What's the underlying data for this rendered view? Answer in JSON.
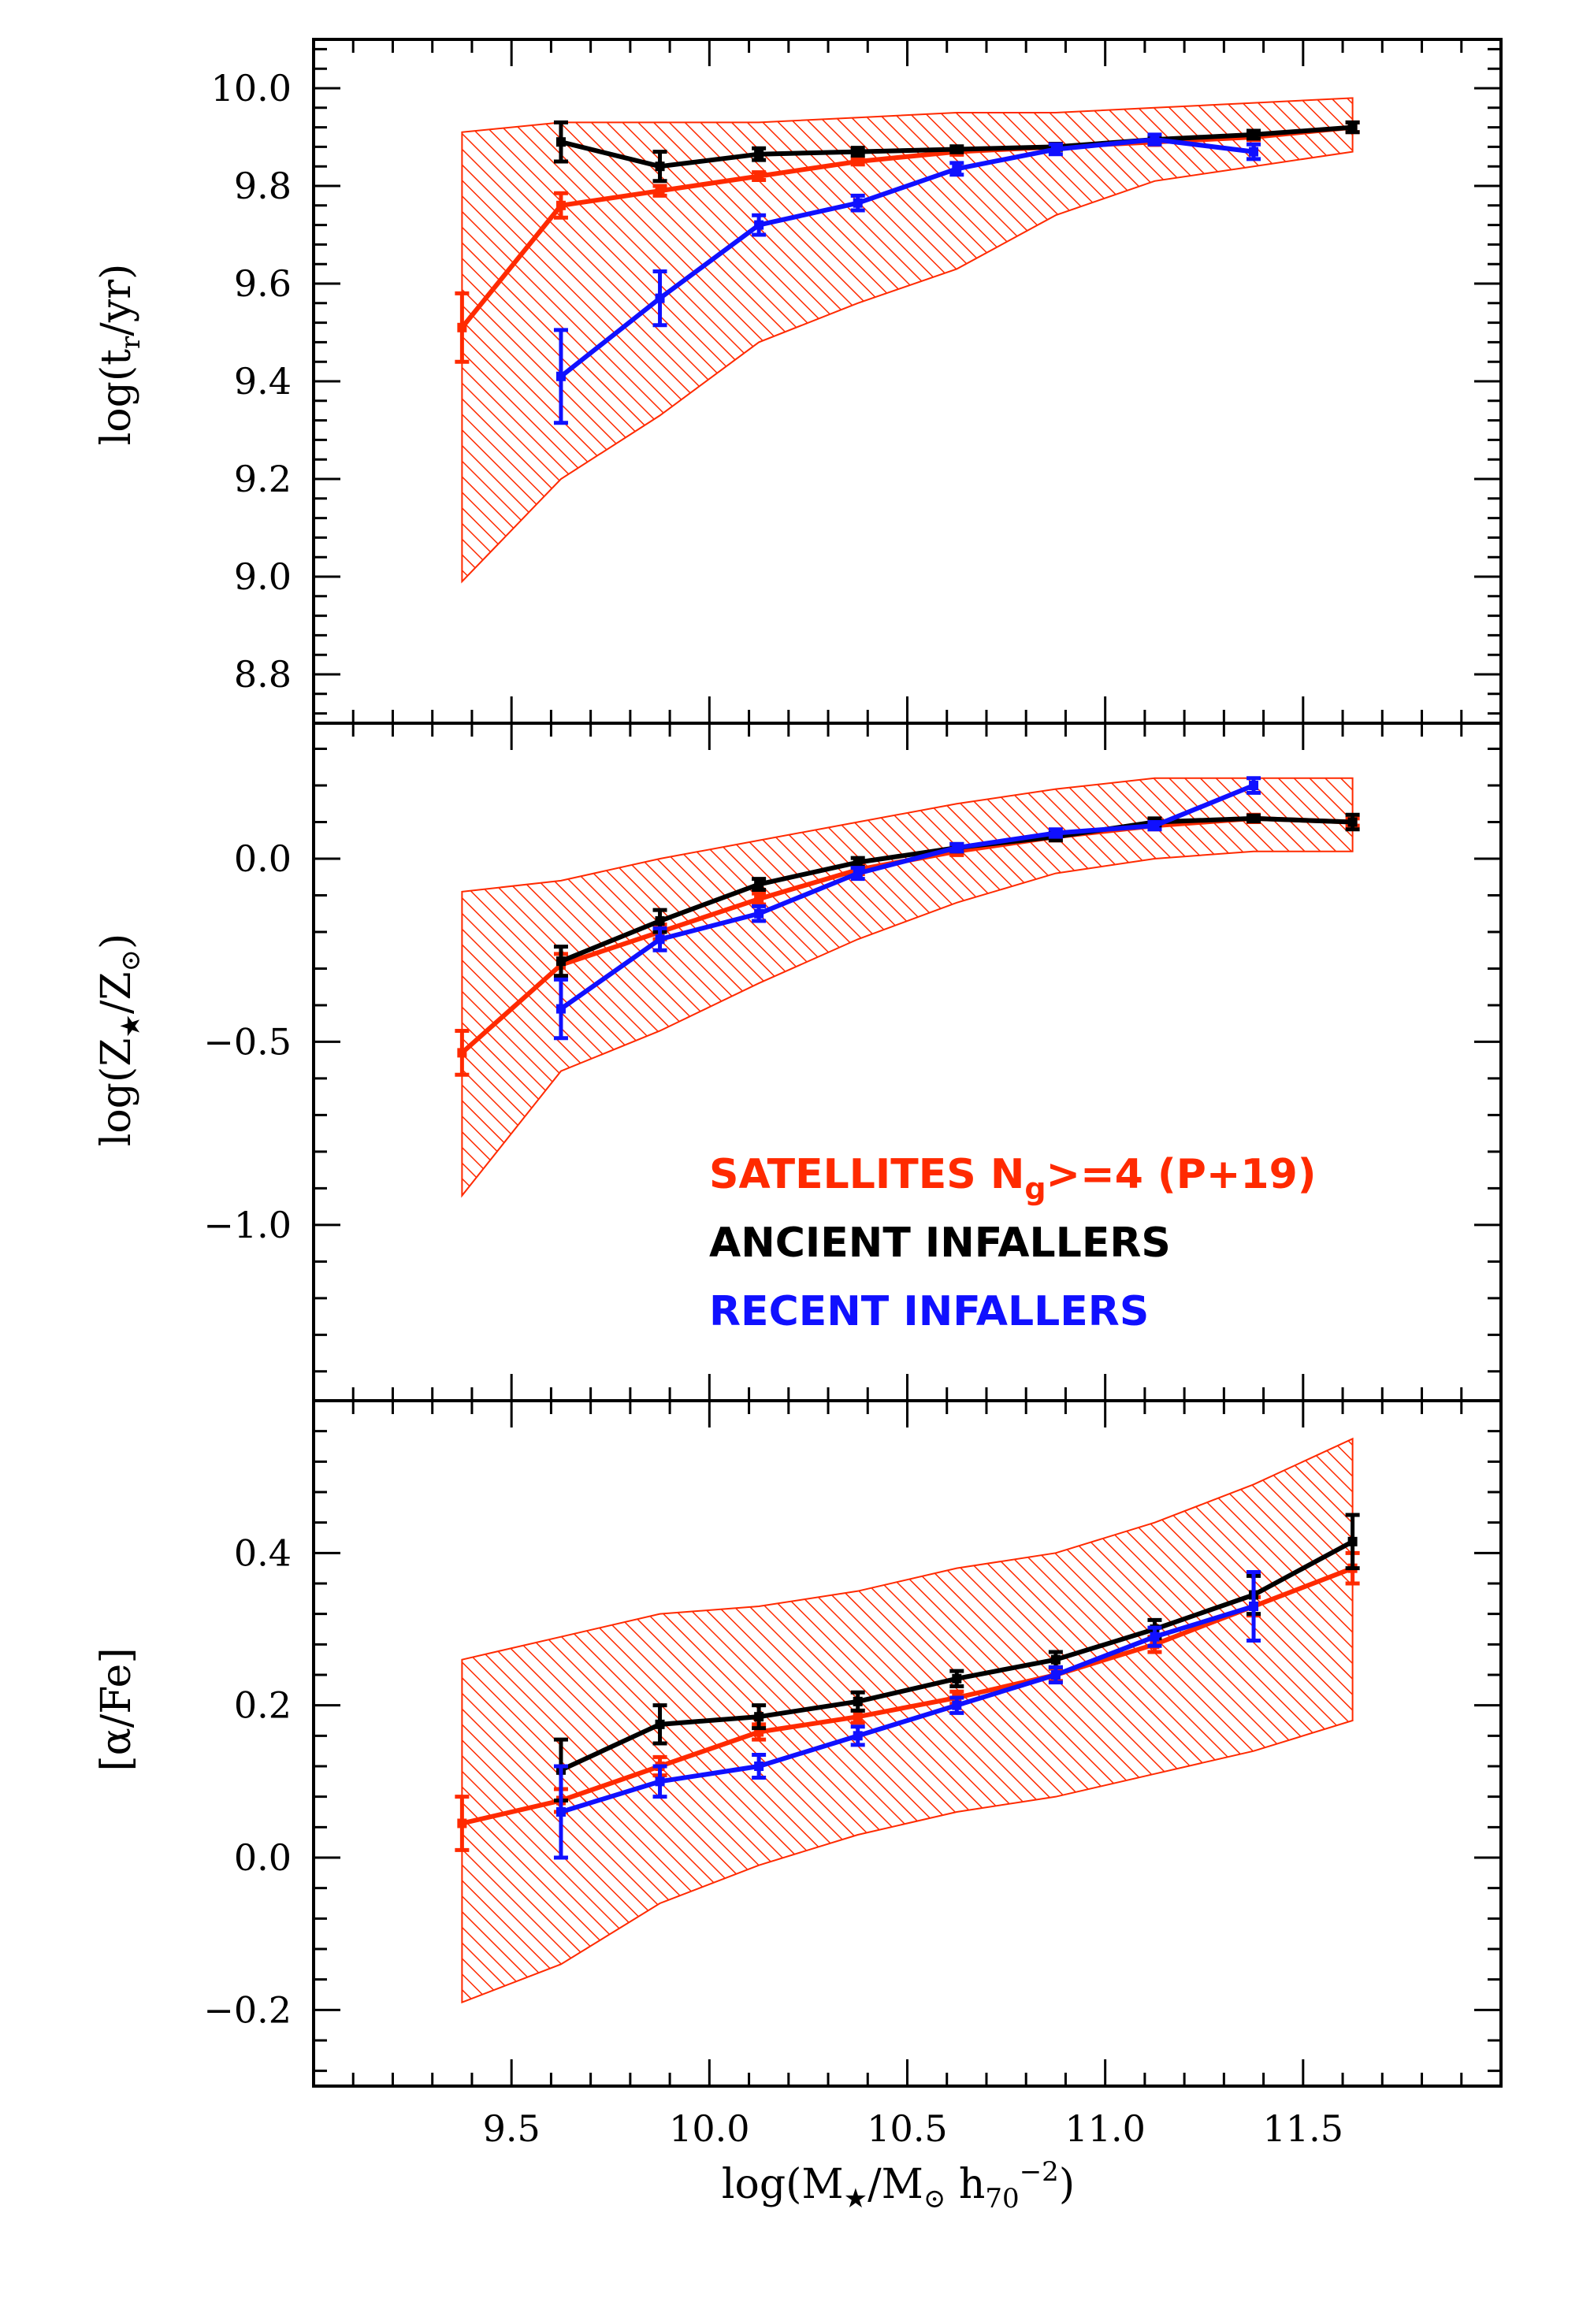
{
  "chart_data": [
    {
      "type": "line",
      "panel": "top",
      "ylabel": "log(t_r/yr)",
      "ylabel_parts": {
        "main": "log(t",
        "sub": "r",
        "tail": "/yr)"
      },
      "ylim": [
        8.7,
        10.1
      ],
      "yticks": [
        8.8,
        9.0,
        9.2,
        9.4,
        9.6,
        9.8,
        10.0
      ],
      "ytick_labels": [
        "8.8",
        "9.0",
        "9.2",
        "9.4",
        "9.6",
        "9.8",
        "10.0"
      ],
      "band": {
        "name": "SATELLITES N_g>=4 (P+19)",
        "color": "#ff2a00",
        "x": [
          9.375,
          9.625,
          9.875,
          10.125,
          10.375,
          10.625,
          10.875,
          11.125,
          11.375,
          11.625
        ],
        "lower": [
          8.99,
          9.2,
          9.33,
          9.48,
          9.56,
          9.63,
          9.74,
          9.81,
          9.84,
          9.87
        ],
        "upper": [
          9.91,
          9.93,
          9.93,
          9.93,
          9.94,
          9.95,
          9.95,
          9.96,
          9.97,
          9.98
        ]
      },
      "series": [
        {
          "name": "SATELLITES",
          "color": "#ff2a00",
          "x": [
            9.375,
            9.625,
            9.875,
            10.125,
            10.375,
            10.625,
            10.875,
            11.125,
            11.375,
            11.625
          ],
          "y": [
            9.51,
            9.76,
            9.79,
            9.82,
            9.85,
            9.87,
            9.88,
            9.89,
            9.9,
            9.92
          ],
          "err": [
            0.07,
            0.025,
            0.01,
            0.008,
            0.006,
            0.006,
            0.006,
            0.006,
            0.006,
            0.01
          ]
        },
        {
          "name": "ANCIENT INFALLERS",
          "color": "#000000",
          "x": [
            9.625,
            9.875,
            10.125,
            10.375,
            10.625,
            10.875,
            11.125,
            11.375,
            11.625
          ],
          "y": [
            9.89,
            9.84,
            9.865,
            9.87,
            9.875,
            9.88,
            9.895,
            9.905,
            9.92
          ],
          "err": [
            0.04,
            0.03,
            0.012,
            0.008,
            0.006,
            0.006,
            0.006,
            0.008,
            0.01
          ]
        },
        {
          "name": "RECENT INFALLERS",
          "color": "#1010ff",
          "x": [
            9.625,
            9.875,
            10.125,
            10.375,
            10.625,
            10.875,
            11.125,
            11.375
          ],
          "y": [
            9.41,
            9.57,
            9.72,
            9.765,
            9.835,
            9.875,
            9.895,
            9.87
          ],
          "err": [
            0.095,
            0.055,
            0.02,
            0.015,
            0.012,
            0.01,
            0.01,
            0.015
          ]
        }
      ]
    },
    {
      "type": "line",
      "panel": "middle",
      "ylabel": "log(Z_*/Z_sun)",
      "ylabel_parts": {
        "main": "log(Z",
        "sub": "★",
        "mid": "/Z",
        "sub2": "⊙",
        "tail": ")"
      },
      "ylim": [
        -1.48,
        0.37
      ],
      "yticks": [
        -1.0,
        -0.5,
        0.0
      ],
      "ytick_labels": [
        "−1.0",
        "−0.5",
        "0.0"
      ],
      "band": {
        "name": "SATELLITES N_g>=4 (P+19)",
        "color": "#ff2a00",
        "x": [
          9.375,
          9.625,
          9.875,
          10.125,
          10.375,
          10.625,
          10.875,
          11.125,
          11.375,
          11.625
        ],
        "lower": [
          -0.92,
          -0.58,
          -0.47,
          -0.34,
          -0.22,
          -0.12,
          -0.04,
          0.0,
          0.02,
          0.02
        ],
        "upper": [
          -0.09,
          -0.06,
          0.0,
          0.05,
          0.1,
          0.15,
          0.19,
          0.22,
          0.22,
          0.22
        ]
      },
      "series": [
        {
          "name": "SATELLITES",
          "color": "#ff2a00",
          "x": [
            9.375,
            9.625,
            9.875,
            10.125,
            10.375,
            10.625,
            10.875,
            11.125,
            11.375,
            11.625
          ],
          "y": [
            -0.53,
            -0.29,
            -0.2,
            -0.11,
            -0.03,
            0.02,
            0.06,
            0.09,
            0.11,
            0.1
          ],
          "err": [
            0.06,
            0.03,
            0.02,
            0.015,
            0.012,
            0.01,
            0.01,
            0.01,
            0.01,
            0.01
          ]
        },
        {
          "name": "ANCIENT INFALLERS",
          "color": "#000000",
          "x": [
            9.625,
            9.875,
            10.125,
            10.375,
            10.625,
            10.875,
            11.125,
            11.375,
            11.625
          ],
          "y": [
            -0.28,
            -0.17,
            -0.07,
            -0.01,
            0.03,
            0.06,
            0.1,
            0.11,
            0.1
          ],
          "err": [
            0.04,
            0.03,
            0.015,
            0.012,
            0.01,
            0.01,
            0.01,
            0.008,
            0.02
          ]
        },
        {
          "name": "RECENT INFALLERS",
          "color": "#1010ff",
          "x": [
            9.625,
            9.875,
            10.125,
            10.375,
            10.625,
            10.875,
            11.125,
            11.375
          ],
          "y": [
            -0.41,
            -0.22,
            -0.15,
            -0.04,
            0.03,
            0.07,
            0.09,
            0.2
          ],
          "err": [
            0.08,
            0.03,
            0.02,
            0.015,
            0.01,
            0.01,
            0.01,
            0.02
          ]
        }
      ],
      "legend": {
        "placement": "lower-right",
        "entries": [
          {
            "label_main": "SATELLITES N",
            "label_sub": "g",
            "label_tail": ">=4 (P+19)",
            "color": "#ff2a00"
          },
          {
            "label": "ANCIENT INFALLERS",
            "color": "#000000"
          },
          {
            "label": "RECENT INFALLERS",
            "color": "#1010ff"
          }
        ]
      }
    },
    {
      "type": "line",
      "panel": "bottom",
      "ylabel": "[α/Fe]",
      "ylim": [
        -0.3,
        0.6
      ],
      "yticks": [
        -0.2,
        0.0,
        0.2,
        0.4
      ],
      "ytick_labels": [
        "−0.2",
        "0.0",
        "0.2",
        "0.4"
      ],
      "xlabel": "log(M_*/M_sun h_70^-2)",
      "xlabel_parts": {
        "main": "log(M",
        "sub": "★",
        "mid": "/M",
        "sub2": "⊙",
        "mid2": " h",
        "sub3": "70",
        "sup": "−2",
        "tail": ")"
      },
      "xlim": [
        9.0,
        12.0
      ],
      "xticks": [
        9.5,
        10.0,
        10.5,
        11.0,
        11.5
      ],
      "xtick_labels": [
        "9.5",
        "10.0",
        "10.5",
        "11.0",
        "11.5"
      ],
      "band": {
        "name": "SATELLITES N_g>=4 (P+19)",
        "color": "#ff2a00",
        "x": [
          9.375,
          9.625,
          9.875,
          10.125,
          10.375,
          10.625,
          10.875,
          11.125,
          11.375,
          11.625
        ],
        "lower": [
          -0.19,
          -0.14,
          -0.06,
          -0.01,
          0.03,
          0.06,
          0.08,
          0.11,
          0.14,
          0.18
        ],
        "upper": [
          0.26,
          0.29,
          0.32,
          0.33,
          0.35,
          0.38,
          0.4,
          0.44,
          0.49,
          0.55
        ]
      },
      "series": [
        {
          "name": "SATELLITES",
          "color": "#ff2a00",
          "x": [
            9.375,
            9.625,
            9.875,
            10.125,
            10.375,
            10.625,
            10.875,
            11.125,
            11.375,
            11.625
          ],
          "y": [
            0.045,
            0.075,
            0.12,
            0.165,
            0.185,
            0.21,
            0.24,
            0.28,
            0.33,
            0.38
          ],
          "err": [
            0.035,
            0.015,
            0.012,
            0.01,
            0.008,
            0.008,
            0.008,
            0.01,
            0.012,
            0.02
          ]
        },
        {
          "name": "ANCIENT INFALLERS",
          "color": "#000000",
          "x": [
            9.625,
            9.875,
            10.125,
            10.375,
            10.625,
            10.875,
            11.125,
            11.375,
            11.625
          ],
          "y": [
            0.115,
            0.175,
            0.185,
            0.205,
            0.235,
            0.26,
            0.3,
            0.345,
            0.415
          ],
          "err": [
            0.04,
            0.025,
            0.015,
            0.012,
            0.01,
            0.01,
            0.012,
            0.025,
            0.035
          ]
        },
        {
          "name": "RECENT INFALLERS",
          "color": "#1010ff",
          "x": [
            9.625,
            9.875,
            10.125,
            10.375,
            10.625,
            10.875,
            11.125,
            11.375
          ],
          "y": [
            0.06,
            0.1,
            0.12,
            0.16,
            0.2,
            0.24,
            0.29,
            0.33
          ],
          "err": [
            0.06,
            0.02,
            0.015,
            0.012,
            0.01,
            0.01,
            0.012,
            0.045
          ]
        }
      ]
    }
  ]
}
